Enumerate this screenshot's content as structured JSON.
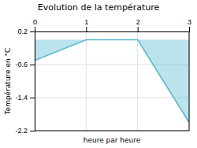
{
  "chart_data": {
    "type": "area",
    "title": "Evolution de la température",
    "xlabel": "heure par heure",
    "ylabel": "Température en °C",
    "x": [
      0,
      1,
      2,
      3
    ],
    "values": [
      -0.5,
      0.0,
      0.0,
      -2.0
    ],
    "color": "#55b8cc",
    "xlim": [
      0,
      3
    ],
    "ylim": [
      -2.2,
      0.2
    ],
    "xticks": [
      0,
      1,
      2,
      3
    ],
    "yticks": [
      0.2,
      -0.6,
      -1.4,
      -2.2
    ],
    "grid": true
  }
}
